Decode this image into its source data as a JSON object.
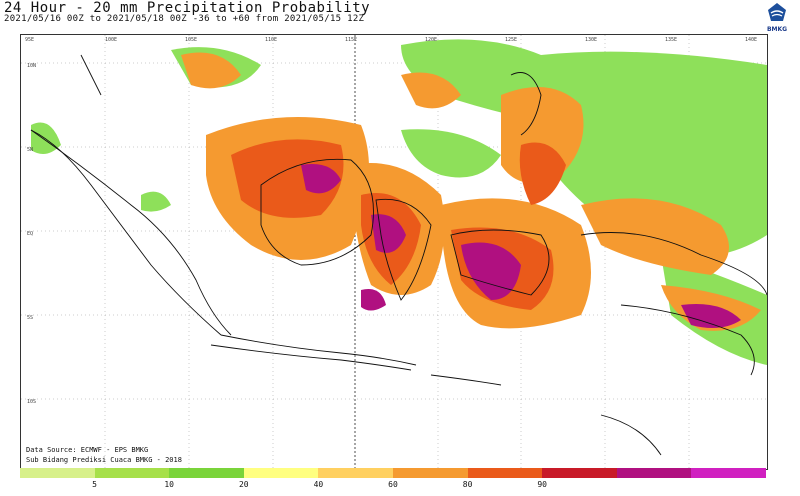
{
  "title": "24 Hour - 20 mm Precipitation Probability",
  "subtitle": "2021/05/16 00Z to 2021/05/18 00Z -36 to +60 from 2021/05/15 12Z",
  "logo": {
    "icon": "bmkg-logo-icon",
    "text": "BMKG"
  },
  "source_lines": [
    "Data Source: ECMWF - EPS BMKG",
    "Sub Bidang Prediksi Cuaca BMKG - 2018"
  ],
  "lon_labels": [
    "95E",
    "100E",
    "105E",
    "110E",
    "115E",
    "120E",
    "125E",
    "130E",
    "135E",
    "140E"
  ],
  "lat_labels": [
    "10N",
    "5N",
    "EQ",
    "5S",
    "10S"
  ],
  "colorbar": {
    "colors": [
      "#d7f08a",
      "#a6e04a",
      "#7ad43a",
      "#ffff80",
      "#ffd060",
      "#f59a30",
      "#ea5a1a",
      "#c81a28",
      "#b01080",
      "#d020c0"
    ],
    "labels": [
      "5",
      "10",
      "20",
      "40",
      "60",
      "80",
      "90"
    ]
  }
}
